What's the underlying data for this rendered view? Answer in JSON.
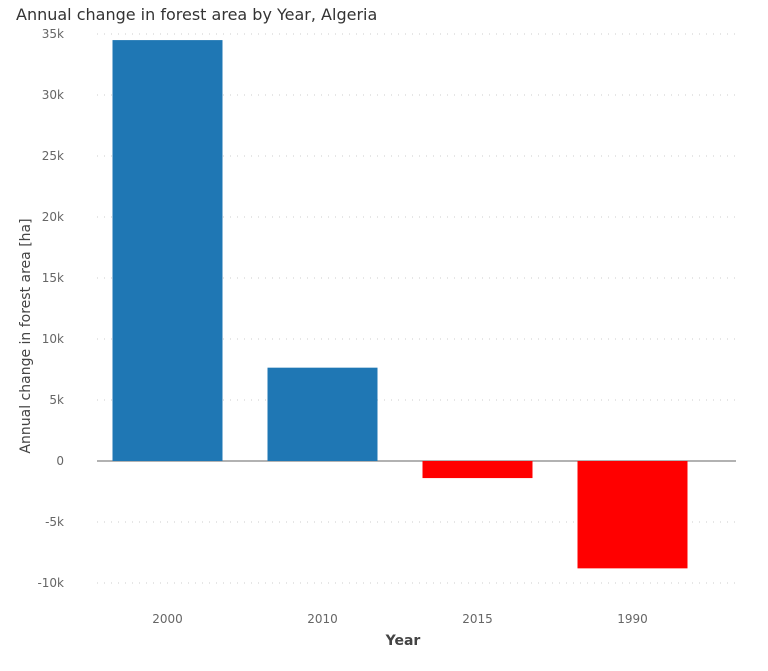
{
  "chart_data": {
    "type": "bar",
    "title": "Annual change in forest area by Year, Algeria",
    "xlabel": "Year",
    "ylabel": "Annual change in forest area [ha]",
    "categories": [
      "2000",
      "2010",
      "2015",
      "1990"
    ],
    "values": [
      34500,
      7650,
      -1400,
      -8800
    ],
    "ylim": [
      -10000,
      35000
    ],
    "yticks": [
      -10000,
      -5000,
      0,
      5000,
      10000,
      15000,
      20000,
      25000,
      30000,
      35000
    ],
    "ytick_labels": [
      "-10k",
      "-5k",
      "0",
      "5k",
      "10k",
      "15k",
      "20k",
      "25k",
      "30k",
      "35k"
    ],
    "grid": true,
    "colors": {
      "positive": "#1f77b4",
      "negative": "#ff0000"
    }
  }
}
